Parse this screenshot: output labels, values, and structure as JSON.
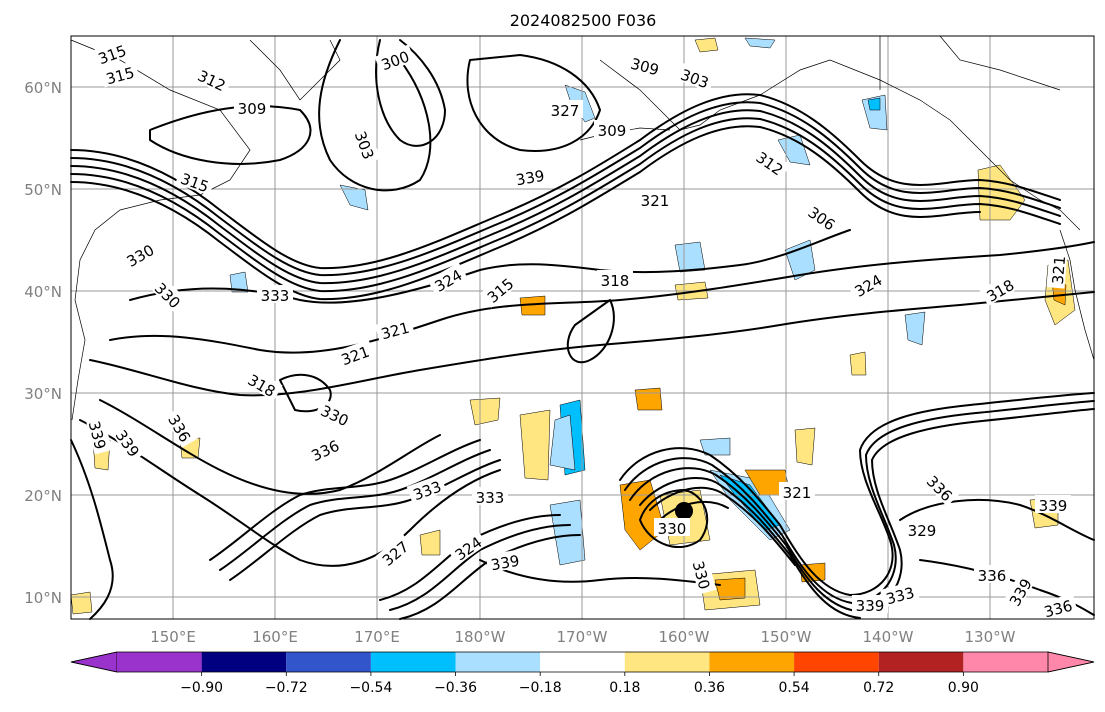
{
  "map": {
    "title": "2024082500 F036",
    "lat_labels": [
      "60°N",
      "50°N",
      "40°N",
      "30°N",
      "20°N",
      "10°N"
    ],
    "lon_labels": [
      "150°E",
      "160°E",
      "170°E",
      "180°W",
      "170°W",
      "160°W",
      "150°W",
      "140°W",
      "130°W"
    ],
    "contour_labels": [
      "315",
      "315",
      "312",
      "309",
      "300",
      "303",
      "315",
      "309",
      "303",
      "309",
      "312",
      "306",
      "321",
      "315",
      "318",
      "330",
      "330",
      "333",
      "324",
      "321",
      "321",
      "318",
      "324",
      "318",
      "321",
      "333",
      "330",
      "336",
      "339",
      "339",
      "336",
      "327",
      "333",
      "327",
      "324",
      "339",
      "330",
      "339",
      "321",
      "336",
      "333",
      "330",
      "336",
      "339",
      "339",
      "336",
      "339",
      "329"
    ]
  },
  "colorbar": {
    "tick_labels": [
      "−0.90",
      "−0.72",
      "−0.54",
      "−0.36",
      "−0.18",
      "0.18",
      "0.36",
      "0.54",
      "0.72",
      "0.90"
    ],
    "colors": [
      "#9933cc",
      "#000080",
      "#3355cc",
      "#00bfff",
      "#aadfff",
      "#ffffff",
      "#ffe680",
      "#ffa500",
      "#ff4500",
      "#b22222",
      "#ff88aa"
    ]
  }
}
